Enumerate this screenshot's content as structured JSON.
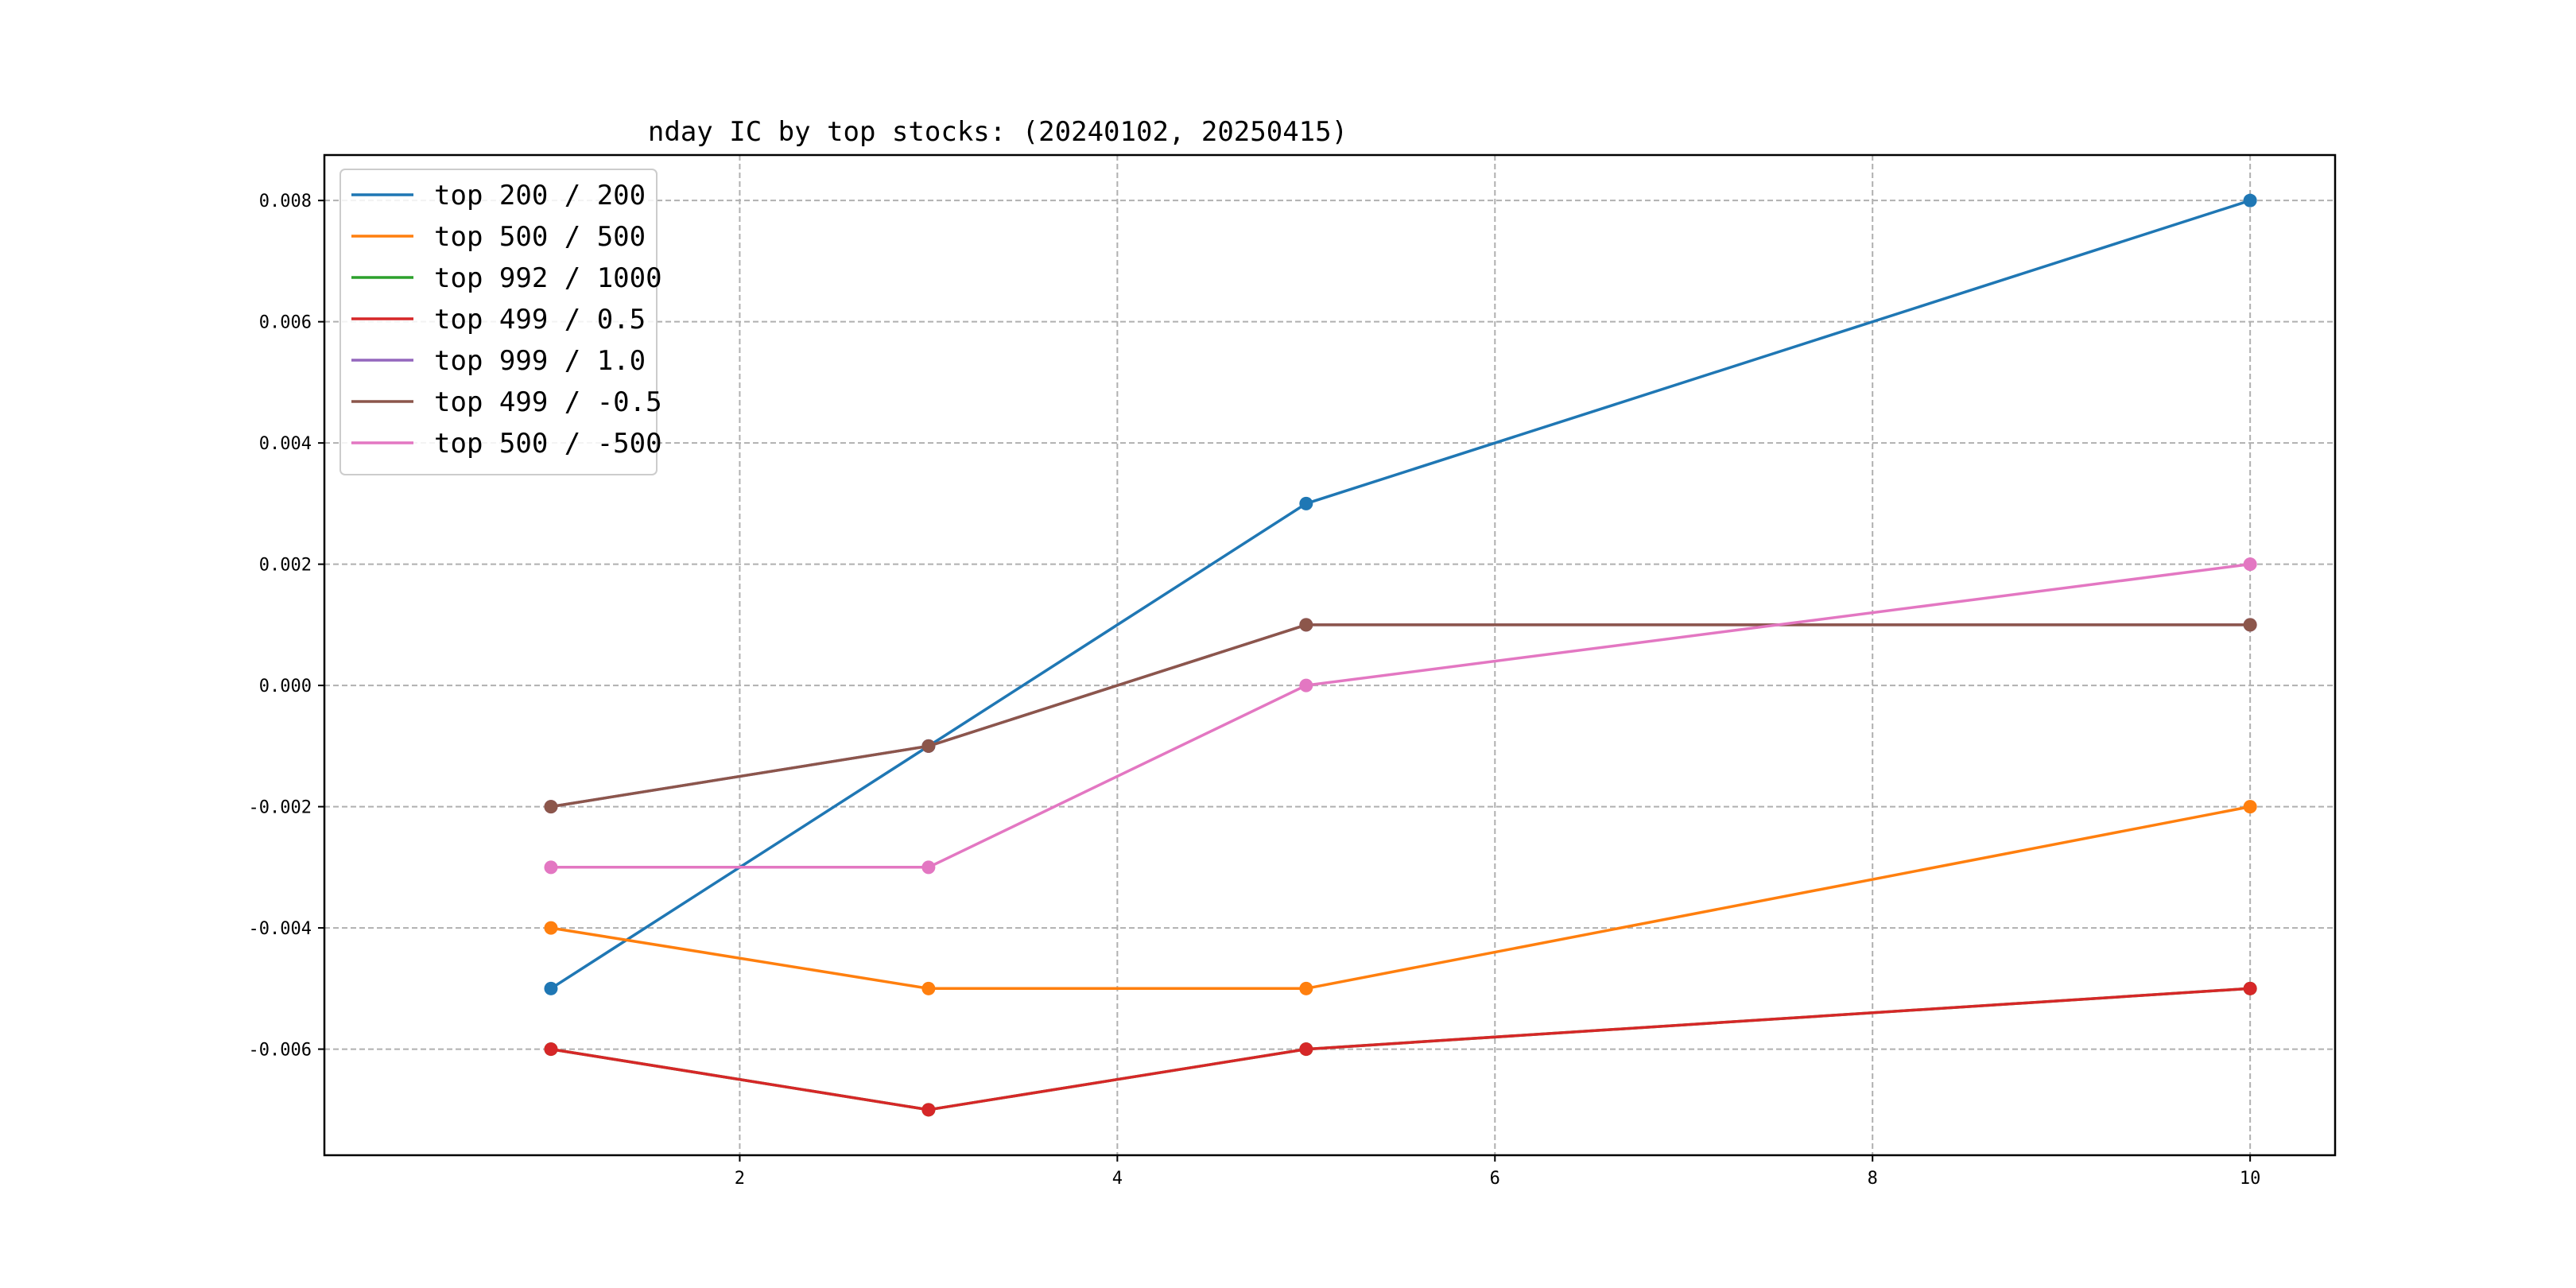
{
  "chart_data": {
    "type": "line",
    "title": "nday IC by top stocks: (20240102, 20250415)",
    "xlabel": "",
    "ylabel": "",
    "x": [
      1,
      3,
      5,
      10
    ],
    "xlim": [
      -0.2,
      10.45
    ],
    "ylim": [
      -0.00775,
      0.00875
    ],
    "xticks": [
      2,
      4,
      6,
      8,
      10
    ],
    "xtick_labels": [
      "2",
      "4",
      "6",
      "8",
      "10"
    ],
    "yticks": [
      -0.006,
      -0.004,
      -0.002,
      0.0,
      0.002,
      0.004,
      0.006,
      0.008
    ],
    "ytick_labels": [
      "-0.006",
      "-0.004",
      "-0.002",
      "0.000",
      "0.002",
      "0.004",
      "0.006",
      "0.008"
    ],
    "grid": true,
    "legend_position": "upper-left",
    "series": [
      {
        "name": "top 200 / 200",
        "color": "#1f77b4",
        "values": [
          -0.005,
          -0.001,
          0.003,
          0.008
        ]
      },
      {
        "name": "top 500 / 500",
        "color": "#ff7f0e",
        "values": [
          -0.004,
          -0.005,
          -0.005,
          -0.002
        ]
      },
      {
        "name": "top 992 / 1000",
        "color": "#2ca02c",
        "values": [
          -0.006,
          -0.007,
          -0.006,
          -0.005
        ]
      },
      {
        "name": "top 499 / 0.5",
        "color": "#d62728",
        "values": [
          -0.006,
          -0.007,
          -0.006,
          -0.005
        ]
      },
      {
        "name": "top 999 / 1.0",
        "color": "#9467bd",
        "values": [
          -0.002,
          -0.001,
          0.001,
          0.001
        ]
      },
      {
        "name": "top 499 / -0.5",
        "color": "#8c564b",
        "values": [
          -0.002,
          -0.001,
          0.001,
          0.001
        ]
      },
      {
        "name": "top 500 / -500",
        "color": "#e377c2",
        "values": [
          -0.003,
          -0.003,
          0.0,
          0.002
        ]
      }
    ]
  }
}
